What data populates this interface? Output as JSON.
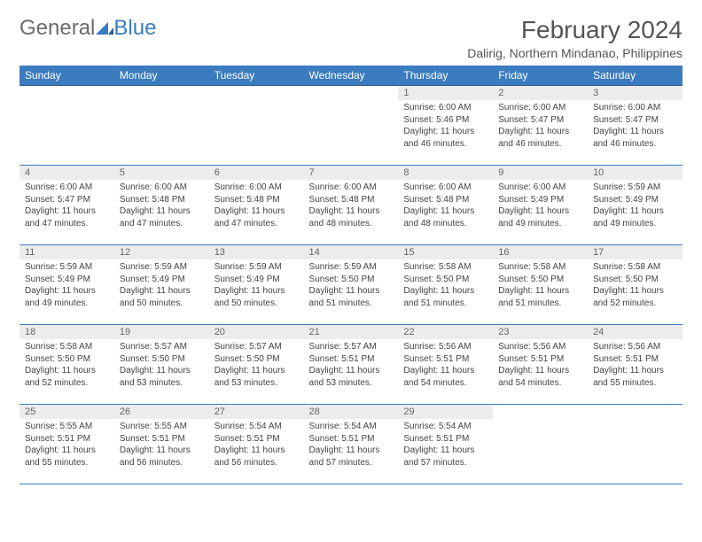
{
  "logo": {
    "text1": "General",
    "text2": "Blue"
  },
  "title": "February 2024",
  "location": "Dalirig, Northern Mindanao, Philippines",
  "colors": {
    "header_bg": "#3b7bbf",
    "header_fg": "#ffffff",
    "daynum_bg": "#ececec",
    "row_border": "#3b7bbf",
    "text": "#444444",
    "logo_gray": "#6b6b6b",
    "logo_blue": "#3b7bbf"
  },
  "weekdays": [
    "Sunday",
    "Monday",
    "Tuesday",
    "Wednesday",
    "Thursday",
    "Friday",
    "Saturday"
  ],
  "weeks": [
    [
      null,
      null,
      null,
      null,
      {
        "d": "1",
        "sr": "Sunrise: 6:00 AM",
        "ss": "Sunset: 5:46 PM",
        "dl1": "Daylight: 11 hours",
        "dl2": "and 46 minutes."
      },
      {
        "d": "2",
        "sr": "Sunrise: 6:00 AM",
        "ss": "Sunset: 5:47 PM",
        "dl1": "Daylight: 11 hours",
        "dl2": "and 46 minutes."
      },
      {
        "d": "3",
        "sr": "Sunrise: 6:00 AM",
        "ss": "Sunset: 5:47 PM",
        "dl1": "Daylight: 11 hours",
        "dl2": "and 46 minutes."
      }
    ],
    [
      {
        "d": "4",
        "sr": "Sunrise: 6:00 AM",
        "ss": "Sunset: 5:47 PM",
        "dl1": "Daylight: 11 hours",
        "dl2": "and 47 minutes."
      },
      {
        "d": "5",
        "sr": "Sunrise: 6:00 AM",
        "ss": "Sunset: 5:48 PM",
        "dl1": "Daylight: 11 hours",
        "dl2": "and 47 minutes."
      },
      {
        "d": "6",
        "sr": "Sunrise: 6:00 AM",
        "ss": "Sunset: 5:48 PM",
        "dl1": "Daylight: 11 hours",
        "dl2": "and 47 minutes."
      },
      {
        "d": "7",
        "sr": "Sunrise: 6:00 AM",
        "ss": "Sunset: 5:48 PM",
        "dl1": "Daylight: 11 hours",
        "dl2": "and 48 minutes."
      },
      {
        "d": "8",
        "sr": "Sunrise: 6:00 AM",
        "ss": "Sunset: 5:48 PM",
        "dl1": "Daylight: 11 hours",
        "dl2": "and 48 minutes."
      },
      {
        "d": "9",
        "sr": "Sunrise: 6:00 AM",
        "ss": "Sunset: 5:49 PM",
        "dl1": "Daylight: 11 hours",
        "dl2": "and 49 minutes."
      },
      {
        "d": "10",
        "sr": "Sunrise: 5:59 AM",
        "ss": "Sunset: 5:49 PM",
        "dl1": "Daylight: 11 hours",
        "dl2": "and 49 minutes."
      }
    ],
    [
      {
        "d": "11",
        "sr": "Sunrise: 5:59 AM",
        "ss": "Sunset: 5:49 PM",
        "dl1": "Daylight: 11 hours",
        "dl2": "and 49 minutes."
      },
      {
        "d": "12",
        "sr": "Sunrise: 5:59 AM",
        "ss": "Sunset: 5:49 PM",
        "dl1": "Daylight: 11 hours",
        "dl2": "and 50 minutes."
      },
      {
        "d": "13",
        "sr": "Sunrise: 5:59 AM",
        "ss": "Sunset: 5:49 PM",
        "dl1": "Daylight: 11 hours",
        "dl2": "and 50 minutes."
      },
      {
        "d": "14",
        "sr": "Sunrise: 5:59 AM",
        "ss": "Sunset: 5:50 PM",
        "dl1": "Daylight: 11 hours",
        "dl2": "and 51 minutes."
      },
      {
        "d": "15",
        "sr": "Sunrise: 5:58 AM",
        "ss": "Sunset: 5:50 PM",
        "dl1": "Daylight: 11 hours",
        "dl2": "and 51 minutes."
      },
      {
        "d": "16",
        "sr": "Sunrise: 5:58 AM",
        "ss": "Sunset: 5:50 PM",
        "dl1": "Daylight: 11 hours",
        "dl2": "and 51 minutes."
      },
      {
        "d": "17",
        "sr": "Sunrise: 5:58 AM",
        "ss": "Sunset: 5:50 PM",
        "dl1": "Daylight: 11 hours",
        "dl2": "and 52 minutes."
      }
    ],
    [
      {
        "d": "18",
        "sr": "Sunrise: 5:58 AM",
        "ss": "Sunset: 5:50 PM",
        "dl1": "Daylight: 11 hours",
        "dl2": "and 52 minutes."
      },
      {
        "d": "19",
        "sr": "Sunrise: 5:57 AM",
        "ss": "Sunset: 5:50 PM",
        "dl1": "Daylight: 11 hours",
        "dl2": "and 53 minutes."
      },
      {
        "d": "20",
        "sr": "Sunrise: 5:57 AM",
        "ss": "Sunset: 5:50 PM",
        "dl1": "Daylight: 11 hours",
        "dl2": "and 53 minutes."
      },
      {
        "d": "21",
        "sr": "Sunrise: 5:57 AM",
        "ss": "Sunset: 5:51 PM",
        "dl1": "Daylight: 11 hours",
        "dl2": "and 53 minutes."
      },
      {
        "d": "22",
        "sr": "Sunrise: 5:56 AM",
        "ss": "Sunset: 5:51 PM",
        "dl1": "Daylight: 11 hours",
        "dl2": "and 54 minutes."
      },
      {
        "d": "23",
        "sr": "Sunrise: 5:56 AM",
        "ss": "Sunset: 5:51 PM",
        "dl1": "Daylight: 11 hours",
        "dl2": "and 54 minutes."
      },
      {
        "d": "24",
        "sr": "Sunrise: 5:56 AM",
        "ss": "Sunset: 5:51 PM",
        "dl1": "Daylight: 11 hours",
        "dl2": "and 55 minutes."
      }
    ],
    [
      {
        "d": "25",
        "sr": "Sunrise: 5:55 AM",
        "ss": "Sunset: 5:51 PM",
        "dl1": "Daylight: 11 hours",
        "dl2": "and 55 minutes."
      },
      {
        "d": "26",
        "sr": "Sunrise: 5:55 AM",
        "ss": "Sunset: 5:51 PM",
        "dl1": "Daylight: 11 hours",
        "dl2": "and 56 minutes."
      },
      {
        "d": "27",
        "sr": "Sunrise: 5:54 AM",
        "ss": "Sunset: 5:51 PM",
        "dl1": "Daylight: 11 hours",
        "dl2": "and 56 minutes."
      },
      {
        "d": "28",
        "sr": "Sunrise: 5:54 AM",
        "ss": "Sunset: 5:51 PM",
        "dl1": "Daylight: 11 hours",
        "dl2": "and 57 minutes."
      },
      {
        "d": "29",
        "sr": "Sunrise: 5:54 AM",
        "ss": "Sunset: 5:51 PM",
        "dl1": "Daylight: 11 hours",
        "dl2": "and 57 minutes."
      },
      null,
      null
    ]
  ]
}
